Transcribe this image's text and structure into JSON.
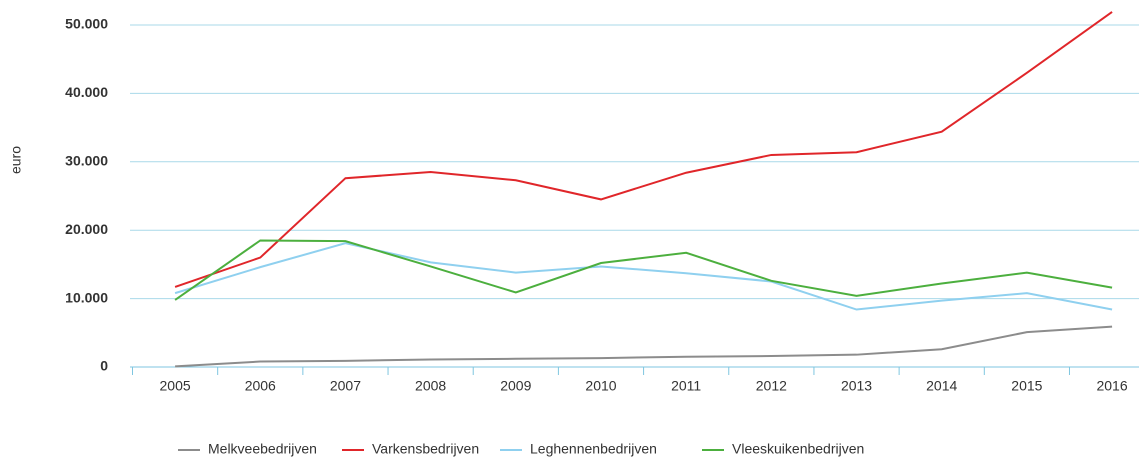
{
  "chart_data": {
    "type": "line",
    "y_label": "euro",
    "categories": [
      "2005",
      "2006",
      "2007",
      "2008",
      "2009",
      "2010",
      "2011",
      "2012",
      "2013",
      "2014",
      "2015",
      "2016"
    ],
    "series": [
      {
        "name": "Melkveebedrijven",
        "color": "#8c8c8c",
        "values": [
          100,
          800,
          900,
          1100,
          1200,
          1300,
          1500,
          1600,
          1800,
          2600,
          5100,
          5900
        ]
      },
      {
        "name": "Varkensbedrijven",
        "color": "#e0262a",
        "values": [
          11700,
          16000,
          27600,
          28500,
          27300,
          24500,
          28400,
          31000,
          31400,
          34400,
          43000,
          51900
        ]
      },
      {
        "name": "Leghennenbedrijven",
        "color": "#8fd0ef",
        "values": [
          10800,
          14600,
          18100,
          15300,
          13800,
          14700,
          13700,
          12500,
          8400,
          9700,
          10800,
          8400
        ]
      },
      {
        "name": "Vleeskuikenbedrijven",
        "color": "#4caf3e",
        "values": [
          9800,
          18500,
          18400,
          14700,
          10900,
          15200,
          16700,
          12600,
          10400,
          12200,
          13800,
          11600
        ]
      }
    ],
    "ylim": [
      0,
      52000
    ],
    "yticks": [
      0,
      {
        "value": 10000,
        "label": "10.000"
      },
      {
        "value": 20000,
        "label": "20.000"
      },
      {
        "value": 30000,
        "label": "30.000"
      },
      {
        "value": 40000,
        "label": "40.000"
      },
      {
        "value": 50000,
        "label": "50.000"
      }
    ],
    "grid": true,
    "legend": "bottom"
  }
}
